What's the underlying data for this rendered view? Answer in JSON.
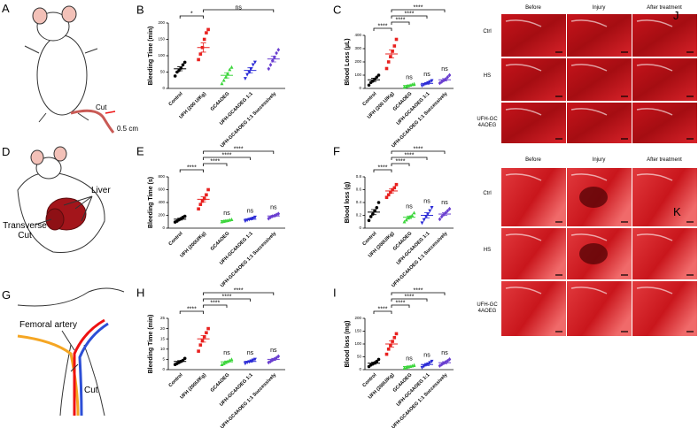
{
  "panels": {
    "A": {
      "letter": "A",
      "labels": [
        "Cut",
        "0.5 cm"
      ]
    },
    "D": {
      "letter": "D",
      "labels": [
        "Liver",
        "Transverse Cut"
      ]
    },
    "G": {
      "letter": "G",
      "labels": [
        "Femoral artery",
        "Cut"
      ]
    },
    "J": {
      "letter": "J",
      "columns": [
        "Before",
        "Injury",
        "After treatment"
      ],
      "rows": [
        "Ctrl",
        "HS",
        "UFH-GC4AOEG"
      ]
    },
    "K": {
      "letter": "K",
      "columns": [
        "Before",
        "Injury",
        "After treatment"
      ],
      "rows": [
        "Ctrl",
        "HS",
        "UFH-GC4AOEG"
      ]
    }
  },
  "chart_data": [
    {
      "type": "dot",
      "panel": "B",
      "ylabel": "Bleeding Time (min)",
      "categories": [
        "Control",
        "UFH (200 U/Kg)",
        "GC4AOEG",
        "UFH-GC4AOEG 1:1",
        "UFH-GC4AOEG 1:1 Successively"
      ],
      "ylim": [
        0,
        200
      ],
      "yticks": [
        0,
        50,
        100,
        150,
        200
      ],
      "groups": [
        {
          "color": "#000000",
          "marker": "circle",
          "points": [
            38,
            50,
            55,
            62,
            72,
            80
          ],
          "mean": 60,
          "sem": 6
        },
        {
          "color": "#e8211f",
          "marker": "square",
          "points": [
            88,
            105,
            125,
            150,
            170,
            180
          ],
          "mean": 125,
          "sem": 14
        },
        {
          "color": "#3cd63c",
          "marker": "triangle-up",
          "points": [
            15,
            25,
            35,
            45,
            58,
            65
          ],
          "mean": 40,
          "sem": 8
        },
        {
          "color": "#2b2bd6",
          "marker": "triangle-down",
          "points": [
            30,
            42,
            50,
            60,
            72,
            80
          ],
          "mean": 55,
          "sem": 8
        },
        {
          "color": "#6a3fd0",
          "marker": "diamond",
          "points": [
            60,
            72,
            85,
            95,
            108,
            118
          ],
          "mean": 90,
          "sem": 9
        }
      ],
      "brackets": [
        {
          "groups": [
            0,
            1
          ],
          "label": "*"
        },
        {
          "groups": [
            1,
            4
          ],
          "label": "ns"
        }
      ]
    },
    {
      "type": "dot",
      "panel": "C",
      "ylabel": "Blood Loss (μL)",
      "categories": [
        "Control",
        "UFH (200 U/Kg)",
        "GC4AOEG",
        "UFH-GC4AOEG 1:1",
        "UFH-GC4AOEG 1:1 Successively"
      ],
      "ylim": [
        0,
        400
      ],
      "yticks": [
        0,
        100,
        200,
        300,
        400
      ],
      "groups": [
        {
          "color": "#000000",
          "marker": "circle",
          "points": [
            25,
            45,
            55,
            70,
            85,
            100
          ],
          "mean": 65,
          "sem": 12
        },
        {
          "color": "#e8211f",
          "marker": "square",
          "points": [
            150,
            200,
            240,
            280,
            320,
            370
          ],
          "mean": 260,
          "sem": 30
        },
        {
          "color": "#3cd63c",
          "marker": "triangle-up",
          "points": [
            10,
            15,
            20,
            25,
            30,
            35
          ],
          "mean": 22,
          "sem": 4
        },
        {
          "color": "#2b2bd6",
          "marker": "triangle-down",
          "points": [
            20,
            28,
            35,
            42,
            50,
            58
          ],
          "mean": 38,
          "sem": 6
        },
        {
          "color": "#6a3fd0",
          "marker": "diamond",
          "points": [
            40,
            50,
            60,
            70,
            85,
            100
          ],
          "mean": 65,
          "sem": 9
        }
      ],
      "group_labels": [
        null,
        null,
        "ns",
        "ns",
        "ns"
      ],
      "brackets": [
        {
          "groups": [
            0,
            1
          ],
          "label": "****"
        },
        {
          "groups": [
            1,
            2
          ],
          "label": "****"
        },
        {
          "groups": [
            1,
            3
          ],
          "label": "****"
        },
        {
          "groups": [
            1,
            4
          ],
          "label": "****"
        }
      ]
    },
    {
      "type": "dot",
      "panel": "E",
      "ylabel": "Bleeding Time (s)",
      "categories": [
        "Control",
        "UFH (200U/Kg)",
        "GC4AOEG",
        "UFH-GC4AOEG 1:1",
        "UFH-GC4AOEG 1:1 Successively"
      ],
      "ylim": [
        0,
        800
      ],
      "yticks": [
        0,
        200,
        400,
        600,
        800
      ],
      "groups": [
        {
          "color": "#000000",
          "marker": "circle",
          "points": [
            95,
            110,
            130,
            150,
            170,
            185
          ],
          "mean": 140,
          "sem": 14
        },
        {
          "color": "#e8211f",
          "marker": "square",
          "points": [
            300,
            370,
            420,
            460,
            520,
            600
          ],
          "mean": 450,
          "sem": 40
        },
        {
          "color": "#3cd63c",
          "marker": "triangle-up",
          "points": [
            100,
            108,
            115,
            120,
            128,
            135
          ],
          "mean": 118,
          "sem": 5
        },
        {
          "color": "#2b2bd6",
          "marker": "triangle-down",
          "points": [
            110,
            125,
            135,
            145,
            155,
            170
          ],
          "mean": 140,
          "sem": 8
        },
        {
          "color": "#6a3fd0",
          "marker": "diamond",
          "points": [
            150,
            170,
            185,
            195,
            210,
            225
          ],
          "mean": 190,
          "sem": 10
        }
      ],
      "group_labels": [
        null,
        null,
        "ns",
        "ns",
        "ns"
      ],
      "brackets": [
        {
          "groups": [
            0,
            1
          ],
          "label": "****"
        },
        {
          "groups": [
            1,
            2
          ],
          "label": "****"
        },
        {
          "groups": [
            1,
            3
          ],
          "label": "****"
        },
        {
          "groups": [
            1,
            4
          ],
          "label": "****"
        }
      ]
    },
    {
      "type": "dot",
      "panel": "F",
      "ylabel": "Blood loss (g)",
      "categories": [
        "Control",
        "UFH (200U/Kg)",
        "GC4AOEG",
        "UFH-GC4AOEG 1:1",
        "UFH-GC4AOEG 1:1 Successively"
      ],
      "ylim": [
        0,
        0.8
      ],
      "yticks": [
        0,
        0.2,
        0.4,
        0.6,
        0.8
      ],
      "groups": [
        {
          "color": "#000000",
          "marker": "circle",
          "points": [
            0.12,
            0.18,
            0.22,
            0.27,
            0.32,
            0.4
          ],
          "mean": 0.25,
          "sem": 0.04
        },
        {
          "color": "#e8211f",
          "marker": "square",
          "points": [
            0.48,
            0.52,
            0.56,
            0.6,
            0.63,
            0.68
          ],
          "mean": 0.58,
          "sem": 0.03
        },
        {
          "color": "#3cd63c",
          "marker": "triangle-up",
          "points": [
            0.1,
            0.13,
            0.16,
            0.18,
            0.2,
            0.24
          ],
          "mean": 0.17,
          "sem": 0.02
        },
        {
          "color": "#2b2bd6",
          "marker": "triangle-down",
          "points": [
            0.08,
            0.13,
            0.18,
            0.22,
            0.27,
            0.32
          ],
          "mean": 0.2,
          "sem": 0.04
        },
        {
          "color": "#6a3fd0",
          "marker": "diamond",
          "points": [
            0.14,
            0.18,
            0.21,
            0.24,
            0.27,
            0.3
          ],
          "mean": 0.22,
          "sem": 0.02
        }
      ],
      "group_labels": [
        null,
        null,
        "ns",
        "ns",
        "ns"
      ],
      "brackets": [
        {
          "groups": [
            0,
            1
          ],
          "label": "****"
        },
        {
          "groups": [
            1,
            2
          ],
          "label": "****"
        },
        {
          "groups": [
            1,
            3
          ],
          "label": "****"
        },
        {
          "groups": [
            1,
            4
          ],
          "label": "****"
        }
      ]
    },
    {
      "type": "dot",
      "panel": "H",
      "ylabel": "Bleeding Time (min)",
      "categories": [
        "Control",
        "UFH (200U/Kg)",
        "GC4AOEG",
        "UFH-GC4AOEG 1:1",
        "UFH-GC4AOEG 1:1 Successively"
      ],
      "ylim": [
        0,
        25
      ],
      "yticks": [
        0,
        5,
        10,
        15,
        20,
        25
      ],
      "groups": [
        {
          "color": "#000000",
          "marker": "circle",
          "points": [
            2.5,
            3,
            3.5,
            4,
            4.5,
            5.5
          ],
          "mean": 4,
          "sem": 0.4
        },
        {
          "color": "#e8211f",
          "marker": "square",
          "points": [
            9,
            12,
            14,
            16,
            18,
            20
          ],
          "mean": 15,
          "sem": 1.6
        },
        {
          "color": "#3cd63c",
          "marker": "triangle-up",
          "points": [
            2.5,
            3,
            3.5,
            4,
            4.5,
            5
          ],
          "mean": 3.8,
          "sem": 0.4
        },
        {
          "color": "#2b2bd6",
          "marker": "triangle-down",
          "points": [
            3,
            3.5,
            3.8,
            4.2,
            4.6,
            5
          ],
          "mean": 4,
          "sem": 0.3
        },
        {
          "color": "#6a3fd0",
          "marker": "diamond",
          "points": [
            3.5,
            4,
            4.6,
            5.2,
            5.8,
            6.5
          ],
          "mean": 5,
          "sem": 0.5
        }
      ],
      "group_labels": [
        null,
        null,
        "ns",
        "ns",
        "ns"
      ],
      "brackets": [
        {
          "groups": [
            0,
            1
          ],
          "label": "****"
        },
        {
          "groups": [
            1,
            2
          ],
          "label": "****"
        },
        {
          "groups": [
            1,
            3
          ],
          "label": "****"
        },
        {
          "groups": [
            1,
            4
          ],
          "label": "****"
        }
      ]
    },
    {
      "type": "dot",
      "panel": "I",
      "ylabel": "Blood loss (mg)",
      "categories": [
        "Control",
        "UFH (200U/Kg)",
        "GC4AOEG",
        "UFH-GC4AOEG 1:1",
        "UFH-GC4AOEG 1:1 Successively"
      ],
      "ylim": [
        0,
        200
      ],
      "yticks": [
        0,
        50,
        100,
        150,
        200
      ],
      "groups": [
        {
          "color": "#000000",
          "marker": "circle",
          "points": [
            12,
            18,
            22,
            27,
            32,
            40
          ],
          "mean": 25,
          "sem": 4
        },
        {
          "color": "#e8211f",
          "marker": "square",
          "points": [
            60,
            80,
            95,
            110,
            125,
            140
          ],
          "mean": 100,
          "sem": 12
        },
        {
          "color": "#3cd63c",
          "marker": "triangle-up",
          "points": [
            6,
            9,
            11,
            13,
            15,
            18
          ],
          "mean": 12,
          "sem": 2
        },
        {
          "color": "#2b2bd6",
          "marker": "triangle-down",
          "points": [
            8,
            13,
            18,
            22,
            27,
            32
          ],
          "mean": 20,
          "sem": 4
        },
        {
          "color": "#6a3fd0",
          "marker": "diamond",
          "points": [
            15,
            20,
            25,
            30,
            34,
            40
          ],
          "mean": 27,
          "sem": 4
        }
      ],
      "group_labels": [
        null,
        null,
        "ns",
        "ns",
        "ns"
      ],
      "brackets": [
        {
          "groups": [
            0,
            1
          ],
          "label": "****"
        },
        {
          "groups": [
            1,
            2
          ],
          "label": "****"
        },
        {
          "groups": [
            1,
            3
          ],
          "label": "****"
        },
        {
          "groups": [
            1,
            4
          ],
          "label": "****"
        }
      ]
    }
  ]
}
